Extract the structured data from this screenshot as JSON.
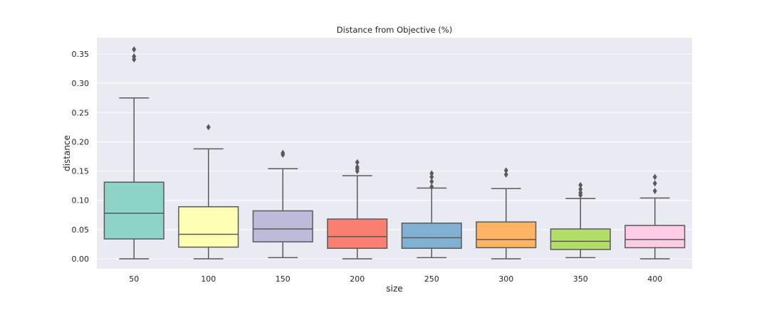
{
  "chart_data": {
    "type": "box",
    "title": "Distance from Objective (%)",
    "xlabel": "size",
    "ylabel": "distance",
    "ylim": [
      -0.017,
      0.378
    ],
    "yticks": [
      0.0,
      0.05,
      0.1,
      0.15,
      0.2,
      0.25,
      0.3,
      0.35
    ],
    "ytick_labels": [
      "0.00",
      "0.05",
      "0.10",
      "0.15",
      "0.20",
      "0.25",
      "0.30",
      "0.35"
    ],
    "grid": true,
    "background": "#EAEAF2",
    "edge_color": "#5a5a5a",
    "categories": [
      "50",
      "100",
      "150",
      "200",
      "250",
      "300",
      "350",
      "400"
    ],
    "boxes": [
      {
        "category": "50",
        "whisker_low": 0.0,
        "q1": 0.034,
        "median": 0.078,
        "q3": 0.131,
        "whisker_high": 0.275,
        "fliers": [
          0.341,
          0.346,
          0.358
        ],
        "color": "#8DD3C7"
      },
      {
        "category": "100",
        "whisker_low": 0.0,
        "q1": 0.02,
        "median": 0.042,
        "q3": 0.089,
        "whisker_high": 0.188,
        "fliers": [
          0.225
        ],
        "color": "#FFFFB3"
      },
      {
        "category": "150",
        "whisker_low": 0.002,
        "q1": 0.029,
        "median": 0.051,
        "q3": 0.082,
        "whisker_high": 0.154,
        "fliers": [
          0.178,
          0.181
        ],
        "color": "#BEBADA"
      },
      {
        "category": "200",
        "whisker_low": 0.0,
        "q1": 0.018,
        "median": 0.038,
        "q3": 0.068,
        "whisker_high": 0.142,
        "fliers": [
          0.15,
          0.154,
          0.157,
          0.165
        ],
        "color": "#FB8072"
      },
      {
        "category": "250",
        "whisker_low": 0.002,
        "q1": 0.018,
        "median": 0.036,
        "q3": 0.061,
        "whisker_high": 0.121,
        "fliers": [
          0.123,
          0.132,
          0.14,
          0.146
        ],
        "color": "#80B1D3"
      },
      {
        "category": "300",
        "whisker_low": 0.0,
        "q1": 0.019,
        "median": 0.033,
        "q3": 0.063,
        "whisker_high": 0.12,
        "fliers": [
          0.144,
          0.151
        ],
        "color": "#FDB462"
      },
      {
        "category": "350",
        "whisker_low": 0.002,
        "q1": 0.016,
        "median": 0.03,
        "q3": 0.051,
        "whisker_high": 0.103,
        "fliers": [
          0.109,
          0.113,
          0.119,
          0.126
        ],
        "color": "#B3DE69"
      },
      {
        "category": "400",
        "whisker_low": 0.0,
        "q1": 0.019,
        "median": 0.033,
        "q3": 0.057,
        "whisker_high": 0.104,
        "fliers": [
          0.116,
          0.129,
          0.14
        ],
        "color": "#FCCDE5"
      }
    ]
  }
}
